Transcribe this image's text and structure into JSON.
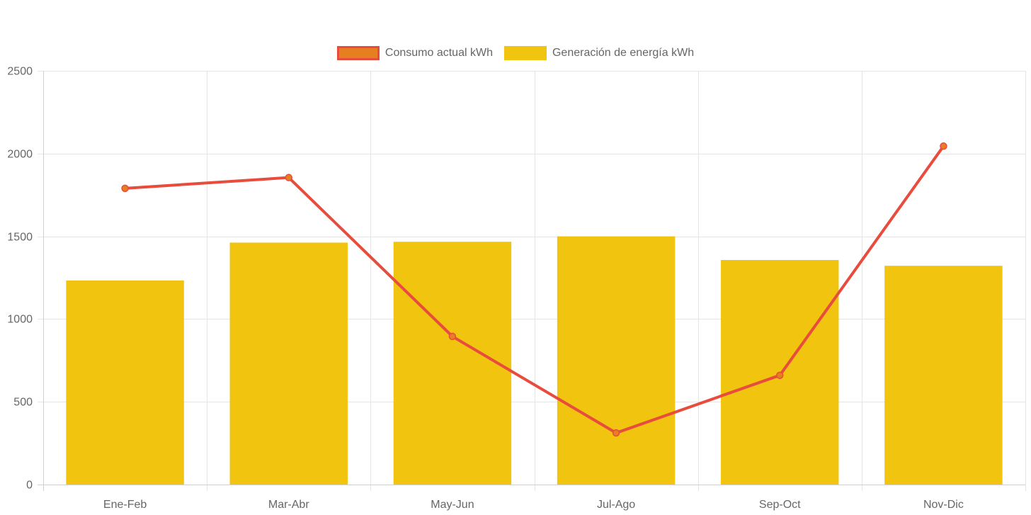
{
  "chart_data": {
    "type": "bar",
    "title": "",
    "xlabel": "",
    "ylabel": "",
    "categories": [
      "Ene-Feb",
      "Mar-Abr",
      "May-Jun",
      "Jul-Ago",
      "Sep-Oct",
      "Nov-Dic"
    ],
    "ylim": [
      0,
      2500
    ],
    "yticks": [
      0,
      500,
      1000,
      1500,
      2000,
      2500
    ],
    "grid": true,
    "legend_position": "top-center",
    "series": [
      {
        "name": "Consumo actual kWh",
        "type": "line",
        "values": [
          1790,
          1855,
          895,
          312,
          660,
          2045
        ],
        "color": "#e74c3c",
        "point_color": "#e67e22"
      },
      {
        "name": "Generación de energía kWh",
        "type": "bar",
        "values": [
          1233,
          1462,
          1467,
          1500,
          1357,
          1322
        ],
        "color": "#f1c40f"
      }
    ]
  }
}
